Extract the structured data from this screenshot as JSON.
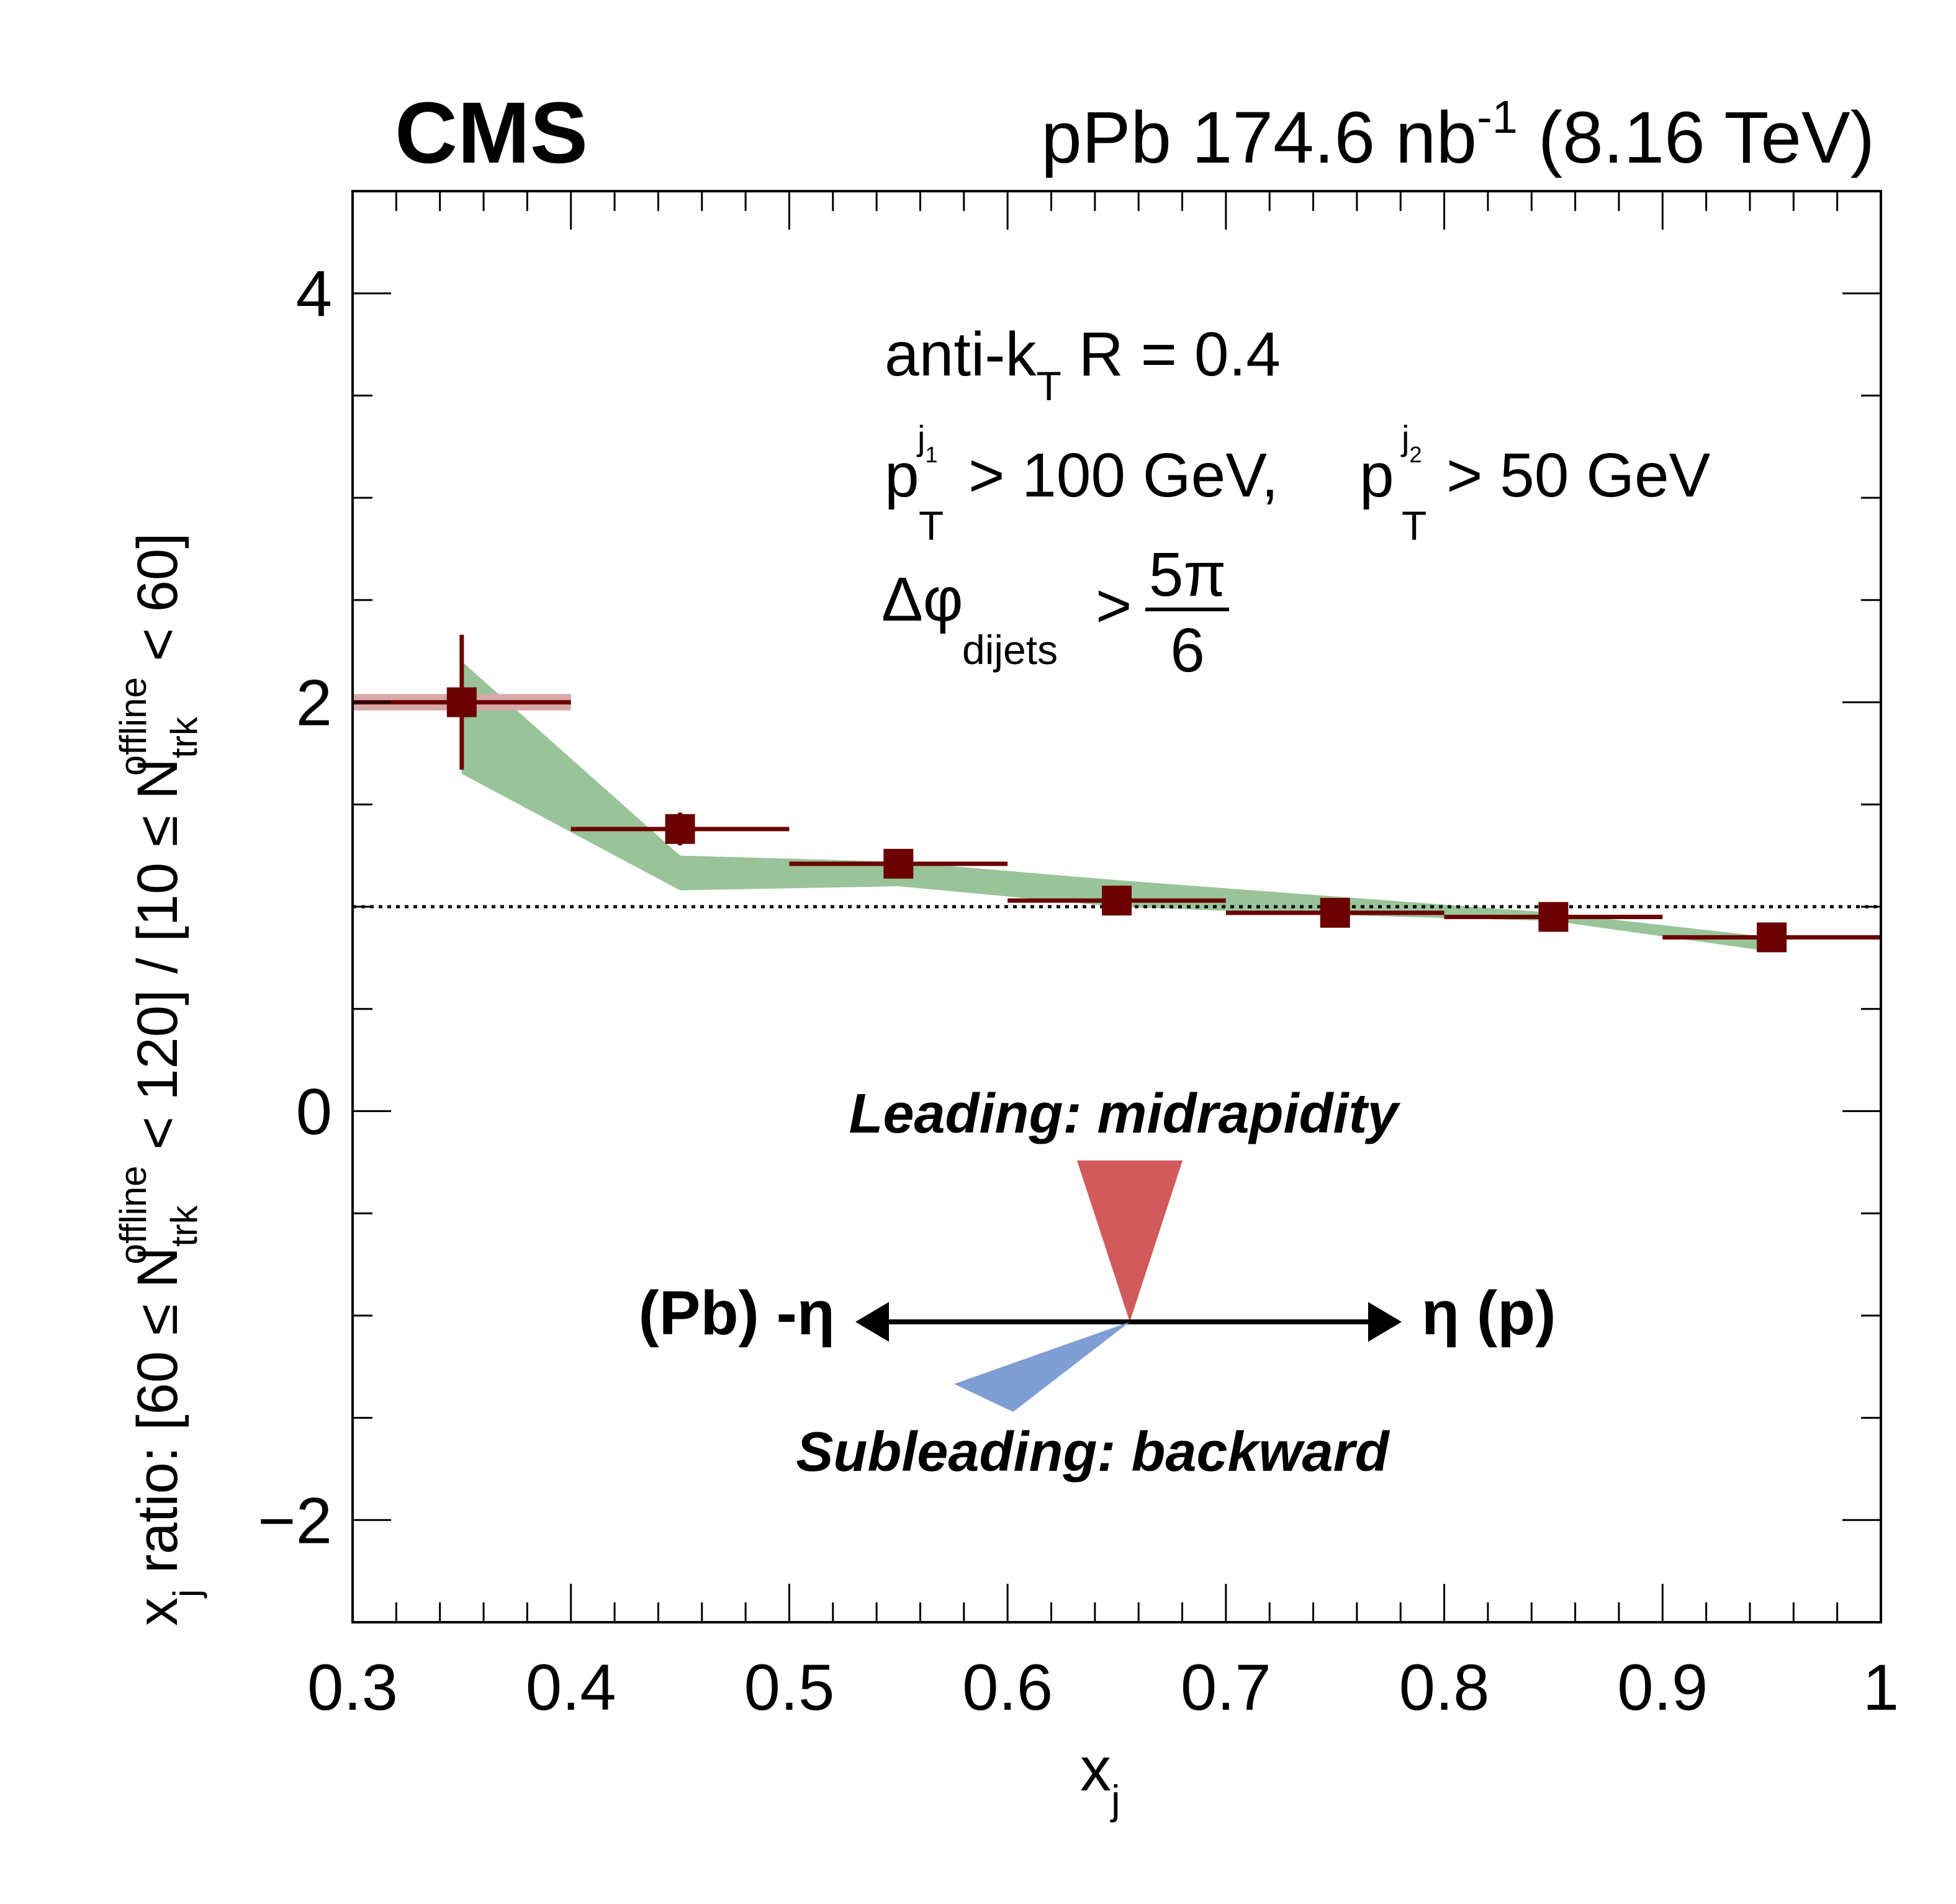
{
  "header": {
    "experiment": "CMS",
    "lumi_prefix": "pPb 174.6 nb",
    "lumi_exp": "-1",
    "energy": "(8.16 TeV)"
  },
  "annotations": {
    "jet_alg": "anti-k",
    "jet_alg_sub": "T",
    "jet_radius": "R = 0.4",
    "pt_p": "p",
    "pt_T": "T",
    "pt_j": "j",
    "pt_sub1": "1",
    "pt_sub2": "2",
    "pt_cut1": "> 100 GeV,",
    "pt_cut2": "> 50 GeV",
    "dphi_symbol": "Δφ",
    "dphi_sub": "dijets",
    "dphi_gt": ">",
    "dphi_num": "5π",
    "dphi_den": "6",
    "leading_label": "Leading: midrapidity",
    "subleading_label": "Subleading: backward",
    "left_dir": "(Pb) -η",
    "right_dir": "η (p)"
  },
  "colors": {
    "marker": "#6b0000",
    "band": "#99c499",
    "leading": "#d15a5c",
    "subleading": "#7f9ed3",
    "first_bin_syst": "#d8a8a8"
  },
  "chart_data": {
    "type": "scatter",
    "xlabel": "x",
    "xlabel_sub": "j",
    "ylabel_parts": {
      "a": "x",
      "a_sub": "j",
      "b": " ratio: [60 ≤ N",
      "b_sup": "offline",
      "b_sub": "trk",
      "c": " < 120] / [10 ≤ N",
      "c_sup": "offline",
      "c_sub": "trk",
      "d": " < 60]"
    },
    "xlim": [
      0.3,
      1.0
    ],
    "ylim": [
      -2.5,
      4.5
    ],
    "xticks": [
      0.3,
      0.4,
      0.5,
      0.6,
      0.7,
      0.8,
      0.9,
      1.0
    ],
    "xtick_labels": [
      "0.3",
      "0.4",
      "0.5",
      "0.6",
      "0.7",
      "0.8",
      "0.9",
      "1"
    ],
    "yticks": [
      -2,
      0,
      2,
      4
    ],
    "ytick_labels": [
      "−2",
      "0",
      "2",
      "4"
    ],
    "reference_line_y": 1.0,
    "series": [
      {
        "x": [
          0.35,
          0.45,
          0.55,
          0.65,
          0.75,
          0.85,
          0.95
        ],
        "x_low": [
          0.3,
          0.4,
          0.5,
          0.6,
          0.7,
          0.8,
          0.9
        ],
        "x_high": [
          0.4,
          0.5,
          0.6,
          0.7,
          0.8,
          0.9,
          1.0
        ],
        "y": [
          2.0,
          1.38,
          1.21,
          1.03,
          0.97,
          0.95,
          0.85
        ],
        "y_stat_err": [
          0.33,
          0.08,
          0.04,
          0.03,
          0.02,
          0.02,
          0.02
        ]
      }
    ],
    "band": {
      "x": [
        0.35,
        0.45,
        0.55,
        0.65,
        0.75,
        0.85,
        0.95
      ],
      "y_low": [
        1.65,
        1.08,
        1.1,
        1.0,
        0.96,
        0.93,
        0.78
      ],
      "y_high": [
        2.2,
        1.25,
        1.22,
        1.13,
        1.05,
        0.97,
        0.85
      ]
    },
    "first_bin_syst": [
      1.96,
      2.04
    ]
  }
}
